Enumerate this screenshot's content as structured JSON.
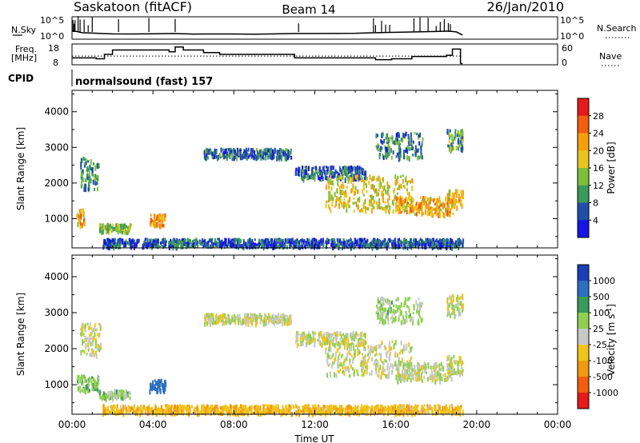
{
  "header": {
    "station": "Saskatoon (fitACF)",
    "beam": "Beam 14",
    "date": "26/Jan/2010"
  },
  "top_panels": {
    "nsky_label": "N.Sky",
    "nsky_ticks": [
      "10^5",
      "10^0"
    ],
    "nsearch_label": "N.Search",
    "nsearch_ticks": [
      "10^5",
      "10^0"
    ],
    "freq_label_line1": "Freq.",
    "freq_label_line2": "[MHz]",
    "freq_ticks": [
      "18",
      "8"
    ],
    "nave_label": "Nave",
    "nave_ticks": [
      "60",
      "0"
    ],
    "cpid_label": "CPID",
    "cpid_text": "normalsound (fast) 157"
  },
  "axes": {
    "ylabel": "Slant Range [km]",
    "xlabel": "Time UT",
    "x_ticks": [
      "00:00",
      "04:00",
      "08:00",
      "12:00",
      "16:00",
      "20:00",
      "00:00"
    ],
    "y_ticks": [
      "4000",
      "3000",
      "2000",
      "1000"
    ],
    "x_range_hours": [
      0,
      24
    ],
    "y_range_km": [
      180,
      4600
    ]
  },
  "power_colorbar": {
    "label": "Power [dB]",
    "ticks": [
      "28",
      "24",
      "20",
      "16",
      "12",
      "8",
      "4"
    ],
    "colors": [
      "#e51b1b",
      "#f25d0f",
      "#f59f0b",
      "#e8c51e",
      "#7dbf3a",
      "#3b9a5a",
      "#214fa8",
      "#1515e6"
    ]
  },
  "velocity_colorbar": {
    "label": "Velocity [m s",
    "label_sup": "-1",
    "label_end": "]",
    "ticks": [
      "1000",
      "500",
      "100",
      "25",
      "-25",
      "-100",
      "-500",
      "-1000"
    ],
    "colors": [
      "#1a3fb5",
      "#2c6fbf",
      "#3a9a58",
      "#8fd14f",
      "#c8c8c8",
      "#f0c419",
      "#f39a12",
      "#f25d0f",
      "#e51b1b"
    ]
  },
  "chart_data": {
    "type": "heatmap",
    "title": "Saskatoon (fitACF)  Beam 14  26/Jan/2010",
    "xlabel": "Time UT",
    "ylabel": "Slant Range [km]",
    "xlim_hours": [
      0,
      24
    ],
    "ylim_km": [
      180,
      4600
    ],
    "data_end_hours": 19.3,
    "nsky_levels": [
      [
        0.0,
        0.68
      ],
      [
        0.5,
        0.4
      ],
      [
        1.0,
        0.35
      ],
      [
        2.0,
        0.25
      ],
      [
        3.0,
        0.23
      ],
      [
        4.0,
        0.27
      ],
      [
        5.0,
        0.3
      ],
      [
        6.0,
        0.22
      ],
      [
        7.0,
        0.23
      ],
      [
        8.0,
        0.23
      ],
      [
        9.0,
        0.2
      ],
      [
        10.0,
        0.25
      ],
      [
        11.0,
        0.3
      ],
      [
        12.0,
        0.3
      ],
      [
        13.0,
        0.32
      ],
      [
        14.0,
        0.33
      ],
      [
        15.0,
        0.4
      ],
      [
        16.0,
        0.45
      ],
      [
        17.0,
        0.5
      ],
      [
        18.0,
        0.55
      ],
      [
        18.6,
        0.6
      ],
      [
        19.0,
        0.5
      ],
      [
        19.3,
        0.1
      ]
    ],
    "frequency_mhz": [
      [
        0.0,
        11.0
      ],
      [
        1.2,
        10.5
      ],
      [
        1.6,
        13.0
      ],
      [
        2.0,
        15.5
      ],
      [
        4.8,
        14.5
      ],
      [
        5.1,
        17.2
      ],
      [
        5.5,
        15.5
      ],
      [
        6.5,
        14.0
      ],
      [
        7.3,
        13.0
      ],
      [
        11.0,
        11.0
      ],
      [
        12.0,
        11.0
      ],
      [
        14.0,
        11.0
      ],
      [
        15.0,
        10.0
      ],
      [
        15.8,
        10.5
      ],
      [
        16.8,
        11.8
      ],
      [
        18.5,
        12.5
      ],
      [
        18.8,
        16.0
      ],
      [
        19.2,
        8.0
      ]
    ],
    "nave_level": 25,
    "cpid": "normalsound (fast) 157",
    "power_clusters": [
      {
        "t": [
          0.2,
          0.6
        ],
        "r": [
          800,
          1250
        ],
        "db": 20
      },
      {
        "t": [
          0.4,
          1.3
        ],
        "r": [
          1800,
          2700
        ],
        "db": 10
      },
      {
        "t": [
          1.3,
          2.9
        ],
        "r": [
          620,
          840
        ],
        "db": 14
      },
      {
        "t": [
          3.8,
          4.6
        ],
        "r": [
          800,
          1120
        ],
        "db": 22
      },
      {
        "t": [
          6.5,
          10.8
        ],
        "r": [
          2700,
          2950
        ],
        "db": 7
      },
      {
        "t": [
          11.0,
          14.5
        ],
        "r": [
          2100,
          2450
        ],
        "db": 7
      },
      {
        "t": [
          12.5,
          16.8
        ],
        "r": [
          1200,
          2200
        ],
        "db": 18
      },
      {
        "t": [
          16.0,
          18.8
        ],
        "r": [
          1100,
          1600
        ],
        "db": 21
      },
      {
        "t": [
          15.0,
          17.3
        ],
        "r": [
          2700,
          3400
        ],
        "db": 9
      },
      {
        "t": [
          18.5,
          19.3
        ],
        "r": [
          1300,
          1800
        ],
        "db": 20
      },
      {
        "t": [
          18.5,
          19.3
        ],
        "r": [
          2900,
          3500
        ],
        "db": 12
      },
      {
        "t": [
          1.5,
          19.3
        ],
        "r": [
          200,
          420
        ],
        "db": 6
      }
    ],
    "velocity_clusters": [
      {
        "t": [
          0.2,
          1.3
        ],
        "r": [
          800,
          1250
        ],
        "v": 70
      },
      {
        "t": [
          0.4,
          1.4
        ],
        "r": [
          1800,
          2700
        ],
        "v": 0
      },
      {
        "t": [
          1.3,
          2.9
        ],
        "r": [
          620,
          840
        ],
        "v": 60
      },
      {
        "t": [
          3.8,
          4.6
        ],
        "r": [
          800,
          1120
        ],
        "v": 700
      },
      {
        "t": [
          6.5,
          10.8
        ],
        "r": [
          2700,
          2950
        ],
        "v": 0
      },
      {
        "t": [
          11.0,
          14.5
        ],
        "r": [
          2100,
          2450
        ],
        "v": 0
      },
      {
        "t": [
          12.5,
          16.8
        ],
        "r": [
          1200,
          2200
        ],
        "v": 0
      },
      {
        "t": [
          16.0,
          18.8
        ],
        "r": [
          1100,
          1600
        ],
        "v": 10
      },
      {
        "t": [
          15.0,
          17.3
        ],
        "r": [
          2700,
          3400
        ],
        "v": 50
      },
      {
        "t": [
          18.5,
          19.3
        ],
        "r": [
          1300,
          1800
        ],
        "v": 0
      },
      {
        "t": [
          18.5,
          19.3
        ],
        "r": [
          2900,
          3500
        ],
        "v": 0
      },
      {
        "t": [
          1.5,
          19.3
        ],
        "r": [
          200,
          420
        ],
        "v": -80
      }
    ]
  }
}
